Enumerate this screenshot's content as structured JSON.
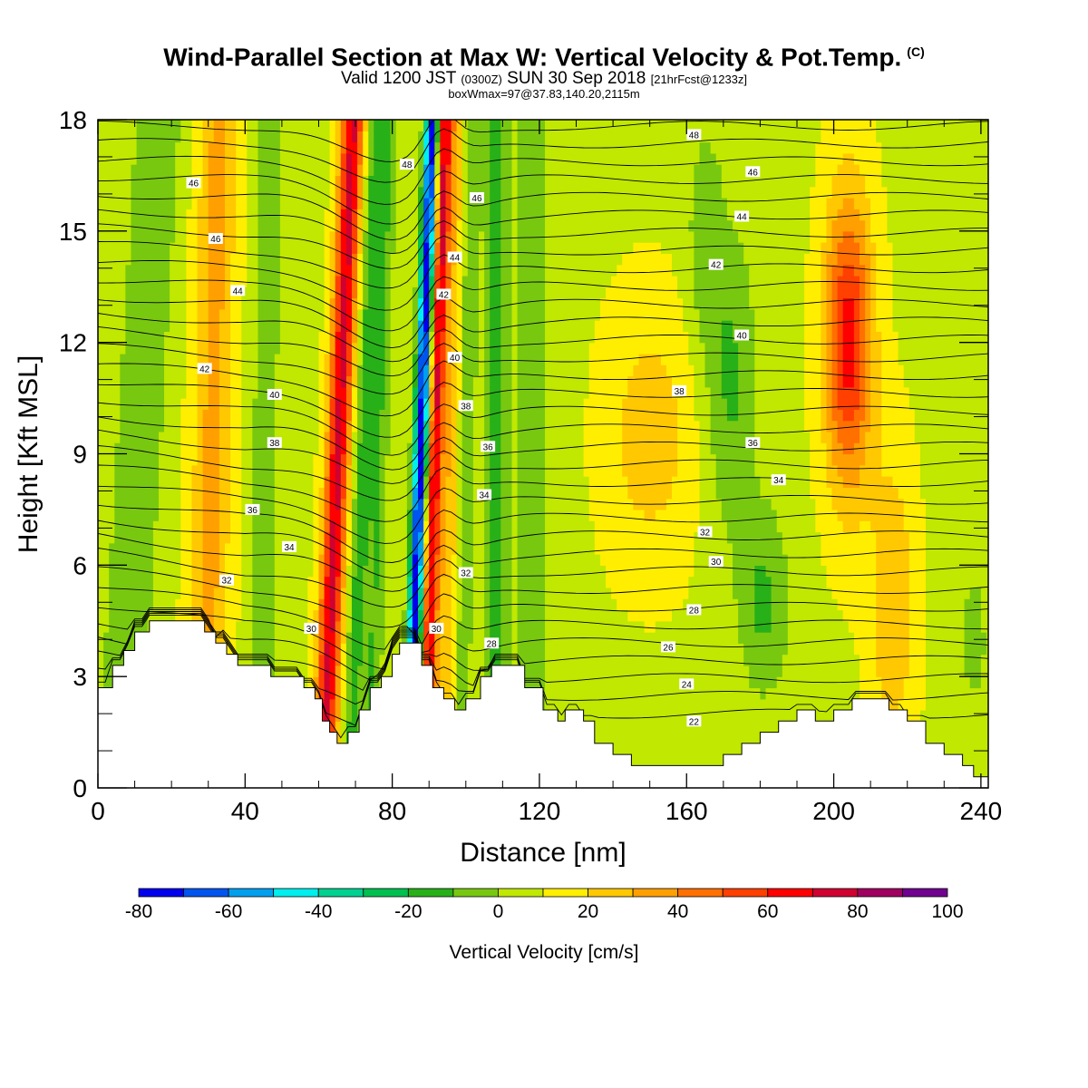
{
  "title": {
    "main": "Wind-Parallel Section at Max W: Vertical Velocity & Pot.Temp.",
    "mark": "(C)",
    "valid_prefix": "Valid 1200 JST",
    "valid_utc": "(0300Z)",
    "valid_date": "SUN 30 Sep 2018",
    "forecast": "[21hrFcst@1233z]",
    "box": "boxWmax=97@37.83,140.20,2115m"
  },
  "chart_data": {
    "type": "heatmap",
    "xlabel": "Distance [nm]",
    "ylabel": "Height [Kft MSL]",
    "xlim": [
      0,
      242
    ],
    "ylim": [
      0,
      18
    ],
    "xticks": [
      0,
      40,
      80,
      120,
      160,
      200,
      240
    ],
    "yticks": [
      0,
      3,
      6,
      9,
      12,
      15,
      18
    ],
    "colorbar": {
      "title": "Vertical Velocity [cm/s]",
      "ticks": [
        -80,
        -60,
        -40,
        -20,
        0,
        20,
        40,
        60,
        80,
        100
      ],
      "bins": [
        -80,
        -70,
        -60,
        -50,
        -40,
        -30,
        -20,
        -10,
        0,
        10,
        20,
        30,
        40,
        50,
        60,
        70,
        80,
        90,
        100
      ],
      "colors": [
        "#0000ee",
        "#0055ee",
        "#00a0ee",
        "#00eeee",
        "#00d090",
        "#00c050",
        "#28b018",
        "#78c810",
        "#c0e800",
        "#ffee00",
        "#ffc800",
        "#ffa000",
        "#ff7000",
        "#ff4000",
        "#ff0000",
        "#d00030",
        "#a00060",
        "#700090"
      ]
    },
    "terrain_kft": [
      [
        0,
        2.7
      ],
      [
        4,
        3.3
      ],
      [
        7,
        3.7
      ],
      [
        10,
        4.2
      ],
      [
        14,
        4.5
      ],
      [
        20,
        4.5
      ],
      [
        26,
        4.5
      ],
      [
        29,
        4.2
      ],
      [
        32,
        3.9
      ],
      [
        35,
        3.6
      ],
      [
        38,
        3.3
      ],
      [
        43,
        3.3
      ],
      [
        47,
        3.0
      ],
      [
        53,
        3.0
      ],
      [
        56,
        2.7
      ],
      [
        59,
        2.4
      ],
      [
        61,
        1.8
      ],
      [
        63,
        1.5
      ],
      [
        65,
        1.2
      ],
      [
        68,
        1.5
      ],
      [
        71,
        2.1
      ],
      [
        74,
        2.7
      ],
      [
        77,
        3.0
      ],
      [
        80,
        3.6
      ],
      [
        82,
        3.9
      ],
      [
        86,
        3.9
      ],
      [
        88,
        3.3
      ],
      [
        91,
        2.7
      ],
      [
        94,
        2.4
      ],
      [
        97,
        2.1
      ],
      [
        100,
        2.4
      ],
      [
        104,
        3.0
      ],
      [
        107,
        3.3
      ],
      [
        113,
        3.3
      ],
      [
        116,
        2.7
      ],
      [
        121,
        2.1
      ],
      [
        125,
        1.8
      ],
      [
        127,
        2.1
      ],
      [
        132,
        1.8
      ],
      [
        135,
        1.2
      ],
      [
        140,
        0.9
      ],
      [
        145,
        0.6
      ],
      [
        150,
        0.6
      ],
      [
        160,
        0.6
      ],
      [
        165,
        0.6
      ],
      [
        170,
        0.9
      ],
      [
        175,
        1.2
      ],
      [
        180,
        1.5
      ],
      [
        185,
        1.8
      ],
      [
        190,
        2.1
      ],
      [
        195,
        1.8
      ],
      [
        200,
        2.1
      ],
      [
        205,
        2.4
      ],
      [
        210,
        2.4
      ],
      [
        215,
        2.1
      ],
      [
        220,
        1.8
      ],
      [
        225,
        1.2
      ],
      [
        230,
        0.9
      ],
      [
        235,
        0.6
      ],
      [
        238,
        0.3
      ],
      [
        242,
        0.3
      ]
    ],
    "theta_contours": {
      "levels": [
        22,
        24,
        26,
        28,
        30,
        32,
        34,
        36,
        38,
        40,
        42,
        44,
        46,
        48
      ],
      "labels": [
        {
          "text": "22",
          "x": 162,
          "y": 1.8
        },
        {
          "text": "24",
          "x": 160,
          "y": 2.8
        },
        {
          "text": "26",
          "x": 155,
          "y": 3.8
        },
        {
          "text": "28",
          "x": 162,
          "y": 4.8
        },
        {
          "text": "30",
          "x": 168,
          "y": 6.1
        },
        {
          "text": "32",
          "x": 165,
          "y": 6.9
        },
        {
          "text": "34",
          "x": 185,
          "y": 8.3
        },
        {
          "text": "36",
          "x": 178,
          "y": 9.3
        },
        {
          "text": "38",
          "x": 158,
          "y": 10.7
        },
        {
          "text": "40",
          "x": 175,
          "y": 12.2
        },
        {
          "text": "42",
          "x": 168,
          "y": 14.1
        },
        {
          "text": "44",
          "x": 175,
          "y": 15.4
        },
        {
          "text": "46",
          "x": 178,
          "y": 16.6
        },
        {
          "text": "48",
          "x": 162,
          "y": 17.6
        },
        {
          "text": "30",
          "x": 58,
          "y": 4.3
        },
        {
          "text": "32",
          "x": 35,
          "y": 5.6
        },
        {
          "text": "34",
          "x": 52,
          "y": 6.5
        },
        {
          "text": "36",
          "x": 42,
          "y": 7.5
        },
        {
          "text": "38",
          "x": 48,
          "y": 9.3
        },
        {
          "text": "40",
          "x": 48,
          "y": 10.6
        },
        {
          "text": "42",
          "x": 29,
          "y": 11.3
        },
        {
          "text": "44",
          "x": 38,
          "y": 13.4
        },
        {
          "text": "46",
          "x": 32,
          "y": 14.8
        },
        {
          "text": "46",
          "x": 26,
          "y": 16.3
        },
        {
          "text": "48",
          "x": 84,
          "y": 16.8
        },
        {
          "text": "46",
          "x": 103,
          "y": 15.9
        },
        {
          "text": "44",
          "x": 97,
          "y": 14.3
        },
        {
          "text": "42",
          "x": 94,
          "y": 13.3
        },
        {
          "text": "40",
          "x": 97,
          "y": 11.6
        },
        {
          "text": "38",
          "x": 100,
          "y": 10.3
        },
        {
          "text": "36",
          "x": 106,
          "y": 9.2
        },
        {
          "text": "34",
          "x": 105,
          "y": 7.9
        },
        {
          "text": "32",
          "x": 100,
          "y": 5.8
        },
        {
          "text": "30",
          "x": 92,
          "y": 4.3
        },
        {
          "text": "28",
          "x": 107,
          "y": 3.9
        }
      ]
    }
  }
}
